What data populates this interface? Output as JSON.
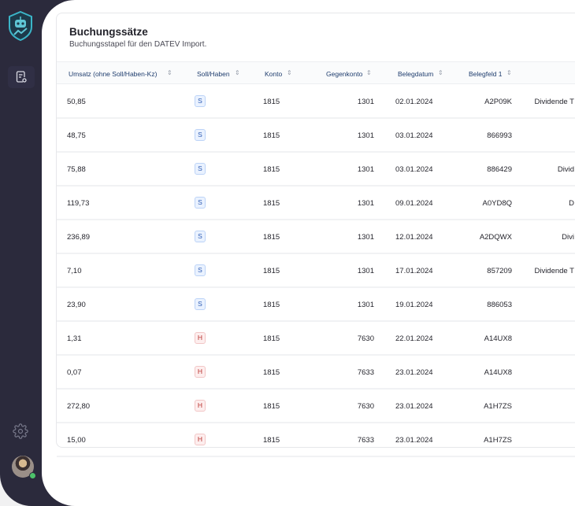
{
  "sidebar": {
    "logo": "robot-shield-logo",
    "items": [
      {
        "icon": "document-settings-icon"
      }
    ],
    "settings_icon": "gear-icon",
    "avatar": "user-avatar"
  },
  "card": {
    "title": "Buchungssätze",
    "subtitle": "Buchungsstapel für den DATEV Import."
  },
  "table": {
    "columns": [
      "Umsatz (ohne Soll/Haben-Kz)",
      "Soll/Haben",
      "Konto",
      "Gegenkonto",
      "Belegdatum",
      "Belegfeld 1"
    ],
    "rows": [
      {
        "umsatz": "50,85",
        "sh": "S",
        "konto": "1815",
        "gegenkonto": "1301",
        "datum": "02.01.2024",
        "beleg": "A2P09K",
        "text": "Dividende T"
      },
      {
        "umsatz": "48,75",
        "sh": "S",
        "konto": "1815",
        "gegenkonto": "1301",
        "datum": "03.01.2024",
        "beleg": "866993",
        "text": ""
      },
      {
        "umsatz": "75,88",
        "sh": "S",
        "konto": "1815",
        "gegenkonto": "1301",
        "datum": "03.01.2024",
        "beleg": "886429",
        "text": "Divid"
      },
      {
        "umsatz": "119,73",
        "sh": "S",
        "konto": "1815",
        "gegenkonto": "1301",
        "datum": "09.01.2024",
        "beleg": "A0YD8Q",
        "text": "D"
      },
      {
        "umsatz": "236,89",
        "sh": "S",
        "konto": "1815",
        "gegenkonto": "1301",
        "datum": "12.01.2024",
        "beleg": "A2DQWX",
        "text": "Divi"
      },
      {
        "umsatz": "7,10",
        "sh": "S",
        "konto": "1815",
        "gegenkonto": "1301",
        "datum": "17.01.2024",
        "beleg": "857209",
        "text": "Dividende T"
      },
      {
        "umsatz": "23,90",
        "sh": "S",
        "konto": "1815",
        "gegenkonto": "1301",
        "datum": "19.01.2024",
        "beleg": "886053",
        "text": ""
      },
      {
        "umsatz": "1,31",
        "sh": "H",
        "konto": "1815",
        "gegenkonto": "7630",
        "datum": "22.01.2024",
        "beleg": "A14UX8",
        "text": ""
      },
      {
        "umsatz": "0,07",
        "sh": "H",
        "konto": "1815",
        "gegenkonto": "7633",
        "datum": "23.01.2024",
        "beleg": "A14UX8",
        "text": ""
      },
      {
        "umsatz": "272,80",
        "sh": "H",
        "konto": "1815",
        "gegenkonto": "7630",
        "datum": "23.01.2024",
        "beleg": "A1H7ZS",
        "text": ""
      },
      {
        "umsatz": "15,00",
        "sh": "H",
        "konto": "1815",
        "gegenkonto": "7633",
        "datum": "23.01.2024",
        "beleg": "A1H7ZS",
        "text": ""
      }
    ]
  },
  "colors": {
    "sidebar": "#2b2a3c",
    "header_text": "#1f3d6e",
    "soll": "#2f5db4",
    "haben": "#b8322e",
    "online": "#4cc26a"
  }
}
